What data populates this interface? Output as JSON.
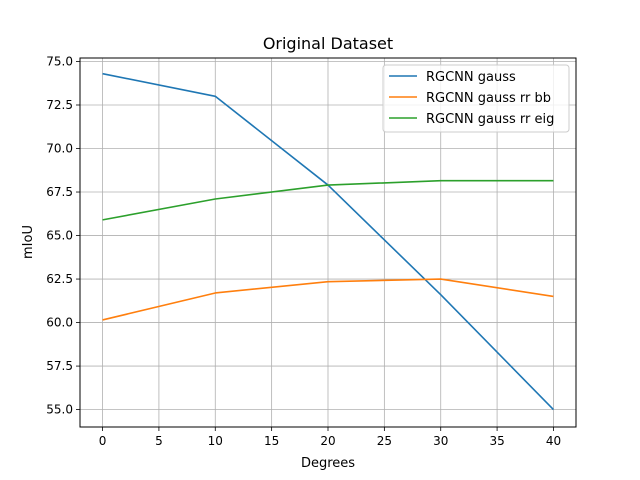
{
  "chart_data": {
    "type": "line",
    "title": "Original Dataset",
    "xlabel": "Degrees",
    "ylabel": "mIoU",
    "x": [
      0,
      10,
      20,
      30,
      40
    ],
    "xlim": [
      -2,
      42
    ],
    "ylim": [
      54.0,
      75.2
    ],
    "xticks": [
      0,
      5,
      10,
      15,
      20,
      25,
      30,
      35,
      40
    ],
    "yticks": [
      "55.0",
      "57.5",
      "60.0",
      "62.5",
      "65.0",
      "67.5",
      "70.0",
      "72.5",
      "75.0"
    ],
    "grid": true,
    "legend_position": "top-right",
    "series": [
      {
        "name": "RGCNN gauss",
        "color": "#1f77b4",
        "values": [
          74.3,
          73.0,
          67.9,
          61.6,
          55.0
        ]
      },
      {
        "name": "RGCNN gauss rr bb",
        "color": "#ff7f0e",
        "values": [
          60.15,
          61.7,
          62.35,
          62.5,
          61.5
        ]
      },
      {
        "name": "RGCNN gauss rr eig",
        "color": "#2ca02c",
        "values": [
          65.9,
          67.1,
          67.9,
          68.15,
          68.15
        ]
      }
    ]
  }
}
